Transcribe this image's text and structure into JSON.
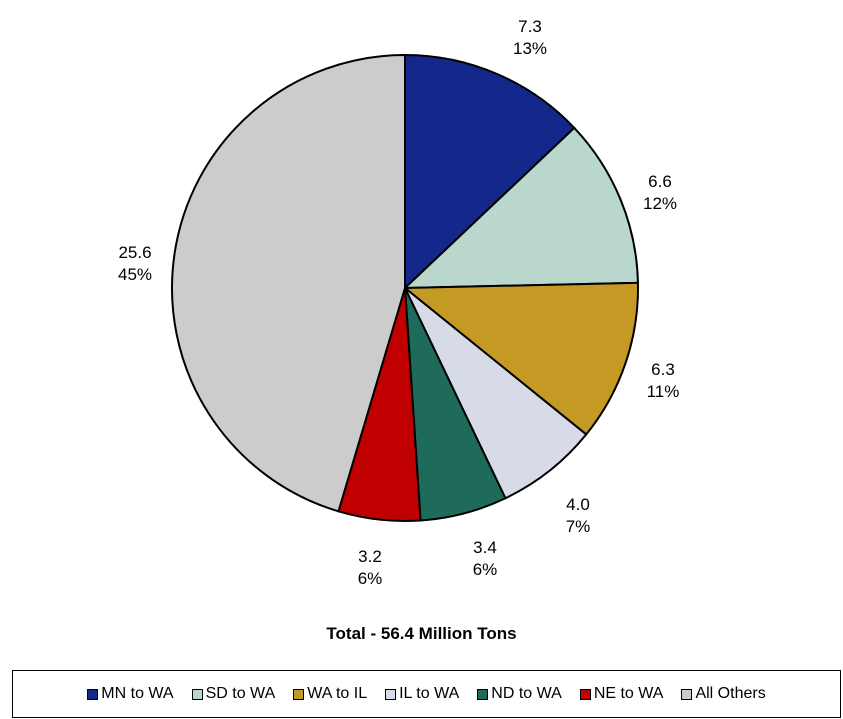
{
  "chart_data": {
    "type": "pie",
    "title": "Total - 56.4 Million Tons",
    "slices": [
      {
        "label": "MN to WA",
        "value": 7.3,
        "pct": "13%",
        "color": "#13288a"
      },
      {
        "label": "SD to WA",
        "value": 6.6,
        "pct": "12%",
        "color": "#b9d7cc"
      },
      {
        "label": "WA to IL",
        "value": 6.3,
        "pct": "11%",
        "color": "#c59a24"
      },
      {
        "label": "IL to WA",
        "value": 4.0,
        "pct": "7%",
        "color": "#d7dbe8"
      },
      {
        "label": "ND to WA",
        "value": 3.4,
        "pct": "6%",
        "color": "#1f6b5a"
      },
      {
        "label": "NE to WA",
        "value": 3.2,
        "pct": "6%",
        "color": "#c00000"
      },
      {
        "label": "All Others",
        "value": 25.6,
        "pct": "45%",
        "color": "#cccccc"
      }
    ],
    "legend_position": "bottom"
  }
}
